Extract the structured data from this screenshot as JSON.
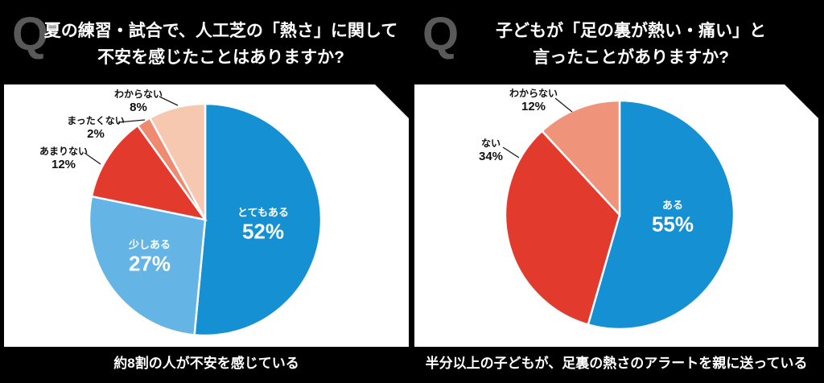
{
  "q_badge": "Q",
  "chart_data": [
    {
      "type": "pie",
      "q_badge": "Q",
      "question_lines": [
        "夏の練習・試合で、人工芝の「熱さ」に関して",
        "不安を感じたことはありますか?"
      ],
      "title": "夏の練習・試合で、人工芝の「熱さ」に関して不安を感じたことはありますか?",
      "start_angle_deg": 0,
      "direction": "clockwise",
      "slices": [
        {
          "label": "とてもある",
          "value_pct": 52,
          "color": "#1591d3",
          "label_position": "inside"
        },
        {
          "label": "少しある",
          "value_pct": 27,
          "color": "#64b5e6",
          "label_position": "inside"
        },
        {
          "label": "あまりない",
          "value_pct": 12,
          "color": "#e23a2c",
          "label_position": "outside"
        },
        {
          "label": "まったくない",
          "value_pct": 2,
          "color": "#ef8a70",
          "label_position": "outside"
        },
        {
          "label": "わからない",
          "value_pct": 8,
          "color": "#f7c8b0",
          "label_position": "outside"
        }
      ],
      "caption": "約8割の人が不安を感じている"
    },
    {
      "type": "pie",
      "q_badge": "Q",
      "question_lines": [
        "子どもが「足の裏が熱い・痛い」と",
        "言ったことがありますか?"
      ],
      "title": "子どもが「足の裏が熱い・痛い」と言ったことがありますか?",
      "start_angle_deg": 0,
      "direction": "clockwise",
      "slices": [
        {
          "label": "ある",
          "value_pct": 55,
          "color": "#1591d3",
          "label_position": "inside"
        },
        {
          "label": "ない",
          "value_pct": 34,
          "color": "#e23a2c",
          "label_position": "outside"
        },
        {
          "label": "わからない",
          "value_pct": 12,
          "color": "#f0937b",
          "label_position": "outside"
        }
      ],
      "caption": "半分以上の子どもが、足裏の熱さのアラートを親に送っている"
    }
  ],
  "style_colors": {
    "background": "#000000",
    "panel": "#ffffff",
    "q_badge": "#595959",
    "title_text": "#ffffff",
    "outside_label_text": "#111111",
    "leader_line": "#1a1a1a"
  }
}
